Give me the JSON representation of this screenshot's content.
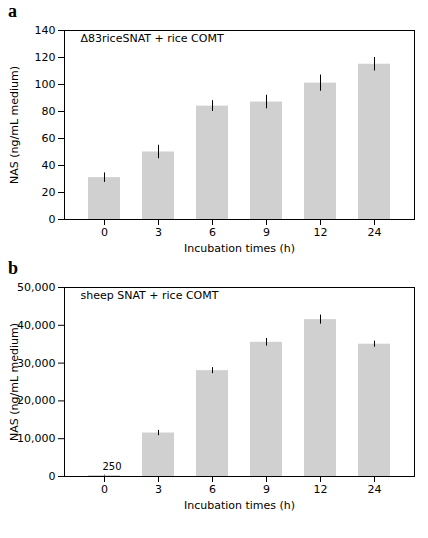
{
  "chart_data": [
    {
      "type": "bar",
      "title": "a",
      "subtitle": "Δ83riceSNAT + rice COMT",
      "categories": [
        "0",
        "3",
        "6",
        "9",
        "12",
        "24"
      ],
      "values": [
        31,
        50,
        84,
        87,
        101,
        115
      ],
      "yerr": [
        3.5,
        5,
        4,
        5,
        6,
        5
      ],
      "color": "#d0d0d0",
      "xlabel": "Incubation times (h)",
      "ylabel": "NAS (ng/mL medium)",
      "ylim": [
        0,
        140
      ],
      "yticks": [
        0,
        20,
        40,
        60,
        80,
        100,
        120,
        140
      ],
      "grid": false
    },
    {
      "type": "bar",
      "title": "b",
      "subtitle": "sheep SNAT + rice COMT",
      "categories": [
        "0",
        "3",
        "6",
        "9",
        "12",
        "24"
      ],
      "values": [
        250,
        11500,
        28000,
        35500,
        41500,
        35000
      ],
      "yerr": [
        100,
        700,
        800,
        1000,
        1200,
        800
      ],
      "color": "#d0d0d0",
      "xlabel": "Incubation times (h)",
      "ylabel": "NAS (ng/mL medium)",
      "ylim": [
        0,
        50000
      ],
      "yticks": [
        0,
        {
          "value": 10000,
          "label": "10,000"
        },
        {
          "value": 20000,
          "label": "20,000"
        },
        {
          "value": 30000,
          "label": "30,000"
        },
        {
          "value": 40000,
          "label": "40,000"
        },
        {
          "value": 50000,
          "label": "50,000"
        }
      ],
      "grid": false,
      "annotations": [
        {
          "text": "250",
          "x": "0",
          "y": 1800
        }
      ]
    }
  ]
}
